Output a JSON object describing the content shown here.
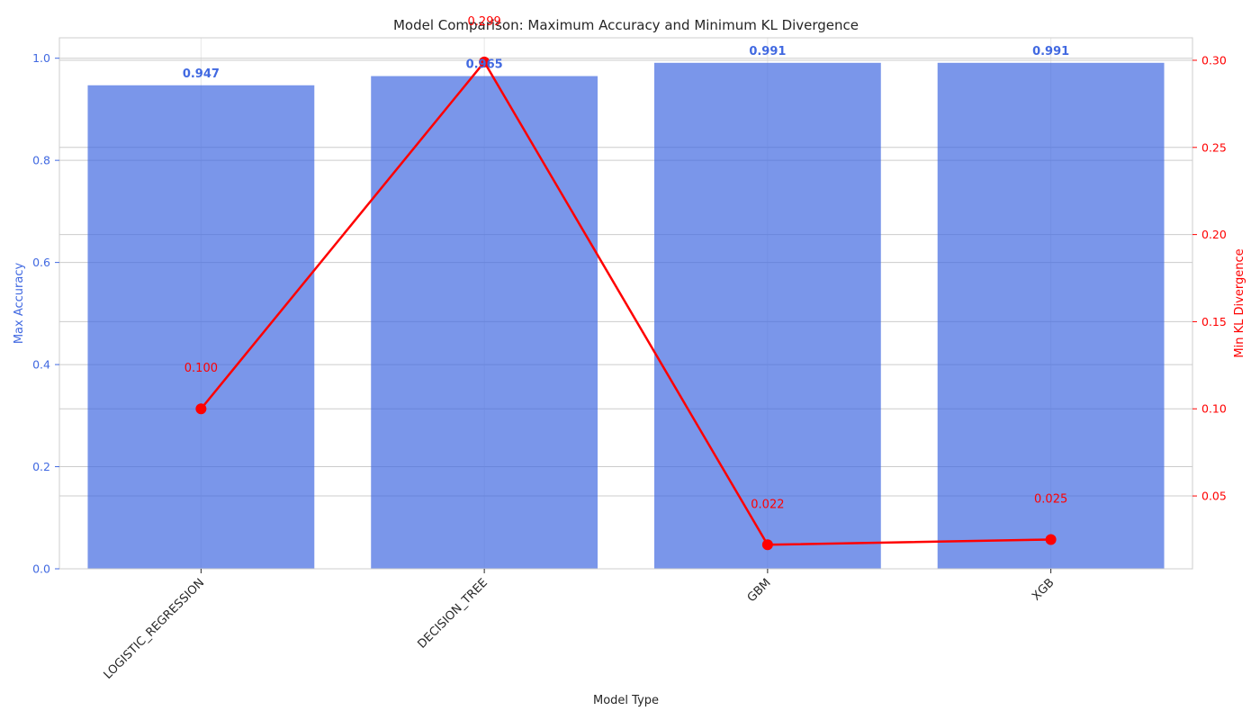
{
  "chart_data": {
    "type": "bar",
    "title": "Model Comparison: Maximum Accuracy and Minimum KL Divergence",
    "xlabel": "Model Type",
    "categories": [
      "LOGISTIC_REGRESSION",
      "DECISION_TREE",
      "GBM",
      "XGB"
    ],
    "series": [
      {
        "type": "bar",
        "axis": "left",
        "values": [
          0.947,
          0.965,
          0.991,
          0.991
        ],
        "value_labels": [
          "0.947",
          "0.965",
          "0.991",
          "0.991"
        ]
      },
      {
        "type": "line",
        "axis": "right",
        "values": [
          0.1,
          0.299,
          0.022,
          0.025
        ],
        "value_labels": [
          "0.100",
          "0.299",
          "0.022",
          "0.025"
        ]
      }
    ],
    "y_left": {
      "label": "Max Accuracy",
      "lim": [
        0,
        1.04
      ],
      "ticks": [
        0.0,
        0.2,
        0.4,
        0.6,
        0.8,
        1.0
      ],
      "tick_labels": [
        "0.0",
        "0.2",
        "0.4",
        "0.6",
        "0.8",
        "1.0"
      ]
    },
    "y_right": {
      "label": "Min KL Divergence",
      "lim": [
        0.0082,
        0.3129
      ],
      "ticks": [
        0.05,
        0.1,
        0.15,
        0.2,
        0.25,
        0.3
      ],
      "tick_labels": [
        "0.05",
        "0.10",
        "0.15",
        "0.20",
        "0.25",
        "0.30"
      ]
    },
    "grid": true,
    "colors": {
      "bar": "#4169e1",
      "line": "#ff0000",
      "left_axis": "#4169e1",
      "right_axis": "#ff0000",
      "text": "#262626",
      "grid": "#cccccc"
    }
  }
}
